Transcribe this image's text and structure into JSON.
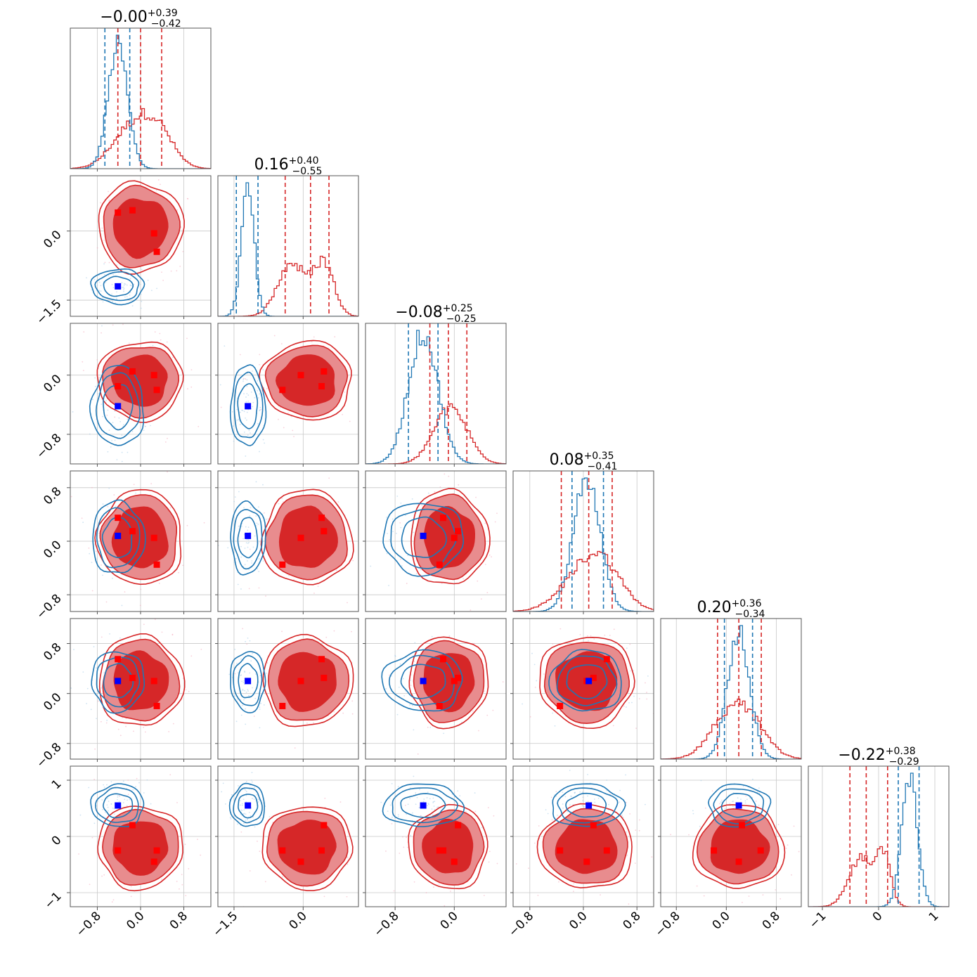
{
  "chart_data": {
    "type": "corner",
    "n_params": 6,
    "colors": {
      "blue": "#1f77b4",
      "red": "#d62728",
      "red_light": "#e88c8e",
      "marker_blue": "#0000ff",
      "marker_red": "#ff0000"
    },
    "params": [
      {
        "title": {
          "median": "−0.00",
          "plus": "+0.39",
          "minus": "−0.42"
        },
        "range": [
          -1.3,
          1.3
        ],
        "ticks": [
          -0.8,
          0.0,
          0.8
        ],
        "ticklabels": [
          "−0.8",
          "0.0",
          "0.8"
        ]
      },
      {
        "title": {
          "median": "0.16",
          "plus": "+0.40",
          "minus": "−0.55"
        },
        "range": [
          -1.85,
          1.2
        ],
        "ticks": [
          -1.5,
          0.0
        ],
        "ticklabels": [
          "−1.5",
          "0.0"
        ]
      },
      {
        "title": {
          "median": "−0.08",
          "plus": "+0.25",
          "minus": "−0.25"
        },
        "range": [
          -1.2,
          0.7
        ],
        "ticks": [
          -0.8,
          0.0
        ],
        "ticklabels": [
          "−0.8",
          "0.0"
        ]
      },
      {
        "title": {
          "median": "0.08",
          "plus": "+0.35",
          "minus": "−0.41"
        },
        "range": [
          -1.05,
          1.05
        ],
        "ticks": [
          -0.8,
          0.0,
          0.8
        ],
        "ticklabels": [
          "−0.8",
          "0.0",
          "0.8"
        ]
      },
      {
        "title": {
          "median": "0.20",
          "plus": "+0.36",
          "minus": "−0.34"
        },
        "range": [
          -1.05,
          1.2
        ],
        "ticks": [
          -0.8,
          0.0,
          0.8
        ],
        "ticklabels": [
          "−0.8",
          "0.0",
          "0.8"
        ]
      },
      {
        "title": {
          "median": "−0.22",
          "plus": "+0.38",
          "minus": "−0.29"
        },
        "range": [
          -1.25,
          1.25
        ],
        "ticks": [
          -1,
          0,
          1
        ],
        "ticklabels": [
          "−1",
          "0",
          "1"
        ]
      }
    ],
    "histograms": [
      {
        "blue": {
          "center": -0.42,
          "width": 0.18,
          "quantiles": [
            -0.66,
            -0.42,
            -0.2
          ]
        },
        "red": {
          "modes": [
            [
              -0.2,
              0.35
            ],
            [
              0.3,
              0.3
            ]
          ],
          "quantiles": [
            -0.42,
            -0.0,
            0.39
          ]
        }
      },
      {
        "blue": {
          "center": -1.2,
          "width": 0.14,
          "quantiles": [
            -1.45,
            -1.2,
            -0.98
          ]
        },
        "red": {
          "modes": [
            [
              -0.25,
              0.3
            ],
            [
              0.45,
              0.22
            ]
          ],
          "quantiles": [
            -0.39,
            0.16,
            0.56
          ]
        }
      },
      {
        "blue": {
          "center": -0.42,
          "width": 0.2,
          "quantiles": [
            -0.62,
            -0.42,
            -0.22
          ]
        },
        "red": {
          "modes": [
            [
              -0.15,
              0.2
            ],
            [
              0.05,
              0.2
            ]
          ],
          "quantiles": [
            -0.33,
            -0.08,
            0.17
          ]
        }
      },
      {
        "blue": {
          "center": 0.05,
          "width": 0.2,
          "quantiles": [
            -0.17,
            0.05,
            0.3
          ]
        },
        "red": {
          "modes": [
            [
              0.0,
              0.35
            ],
            [
              0.3,
              0.3
            ]
          ],
          "quantiles": [
            -0.33,
            0.08,
            0.43
          ]
        }
      },
      {
        "blue": {
          "center": 0.2,
          "width": 0.18,
          "quantiles": [
            -0.03,
            0.2,
            0.42
          ]
        },
        "red": {
          "modes": [
            [
              0.0,
              0.3
            ],
            [
              0.35,
              0.3
            ]
          ],
          "quantiles": [
            -0.14,
            0.2,
            0.56
          ]
        }
      },
      {
        "blue": {
          "center": 0.55,
          "width": 0.14,
          "quantiles": [
            0.35,
            0.55,
            0.72
          ]
        },
        "red": {
          "modes": [
            [
              -0.3,
              0.22
            ],
            [
              0.1,
              0.12
            ]
          ],
          "quantiles": [
            -0.51,
            -0.22,
            0.16
          ]
        }
      }
    ],
    "truth_blue": [
      -0.42,
      -1.2,
      -0.42,
      0.08,
      0.2,
      0.55
    ],
    "red_points": [
      [
        -0.42,
        0.4,
        -0.15,
        0.35,
        0.55,
        -0.25
      ],
      [
        -0.15,
        0.45,
        0.05,
        0.15,
        0.25,
        0.2
      ],
      [
        0.25,
        -0.05,
        0.0,
        0.05,
        0.2,
        -0.45
      ],
      [
        0.3,
        -0.45,
        -0.2,
        -0.35,
        -0.2,
        -0.25
      ]
    ]
  }
}
